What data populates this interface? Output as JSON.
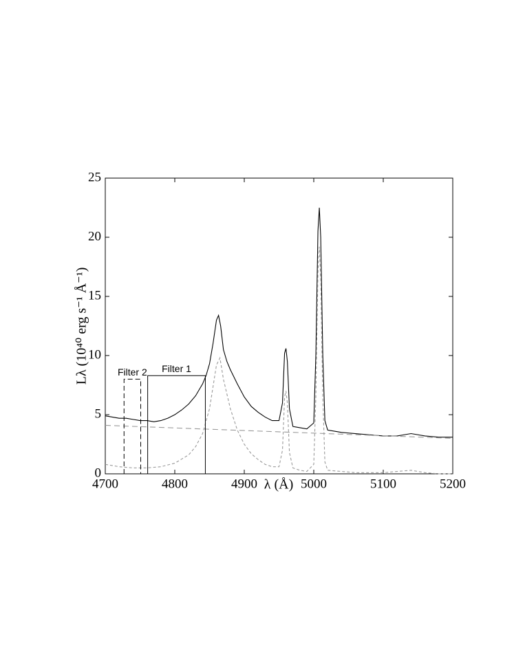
{
  "chart_data": {
    "type": "line",
    "x_label": "λ (Å)",
    "y_label": "Lλ (10⁴⁰ erg s⁻¹ Å⁻¹)",
    "xlim": [
      4700,
      5200
    ],
    "ylim": [
      0,
      25
    ],
    "xticks": [
      4700,
      4800,
      4900,
      5000,
      5100,
      5200
    ],
    "yticks": [
      0,
      5,
      10,
      15,
      20,
      25
    ],
    "series": [
      {
        "color": "#000000",
        "dash": "none",
        "x": [
          4700,
          4710,
          4720,
          4730,
          4740,
          4750,
          4760,
          4770,
          4780,
          4790,
          4800,
          4810,
          4820,
          4830,
          4840,
          4845,
          4850,
          4855,
          4860,
          4863,
          4866,
          4870,
          4875,
          4880,
          4890,
          4900,
          4910,
          4920,
          4930,
          4940,
          4950,
          4955,
          4958,
          4960,
          4962,
          4965,
          4970,
          4980,
          4990,
          5000,
          5003,
          5006,
          5008,
          5010,
          5013,
          5016,
          5020,
          5030,
          5040,
          5060,
          5080,
          5100,
          5120,
          5140,
          5160,
          5180,
          5200
        ],
        "values": [
          4.9,
          4.8,
          4.7,
          4.7,
          4.6,
          4.5,
          4.5,
          4.4,
          4.5,
          4.7,
          5.0,
          5.4,
          5.9,
          6.6,
          7.6,
          8.3,
          9.3,
          11.0,
          13.0,
          13.4,
          12.5,
          10.5,
          9.5,
          8.8,
          7.6,
          6.5,
          5.7,
          5.2,
          4.8,
          4.5,
          4.5,
          6.0,
          10.2,
          10.6,
          9.5,
          5.5,
          4.0,
          3.9,
          3.8,
          4.3,
          10.0,
          20.5,
          22.5,
          20.0,
          10.0,
          4.5,
          3.7,
          3.6,
          3.5,
          3.4,
          3.3,
          3.2,
          3.2,
          3.4,
          3.2,
          3.1,
          3.1
        ]
      },
      {
        "color": "#999999",
        "dash": "8,5",
        "x": [
          4700,
          5200
        ],
        "values": [
          4.1,
          3.0
        ]
      },
      {
        "color": "#999999",
        "dash": "4,3",
        "x": [
          4700,
          4720,
          4740,
          4760,
          4780,
          4800,
          4820,
          4830,
          4840,
          4850,
          4860,
          4865,
          4870,
          4880,
          4890,
          4900,
          4910,
          4920,
          4930,
          4940,
          4950,
          4955,
          4958,
          4960,
          4962,
          4965,
          4970,
          4980,
          4990,
          5000,
          5003,
          5006,
          5008,
          5010,
          5013,
          5016,
          5020,
          5040,
          5060,
          5080,
          5100,
          5120,
          5140,
          5160,
          5180,
          5200
        ],
        "values": [
          0.8,
          0.6,
          0.5,
          0.5,
          0.6,
          0.9,
          1.6,
          2.3,
          3.4,
          5.5,
          9.2,
          9.8,
          8.0,
          5.5,
          3.7,
          2.5,
          1.7,
          1.2,
          0.8,
          0.6,
          0.6,
          2.0,
          6.5,
          7.0,
          6.0,
          1.8,
          0.5,
          0.3,
          0.2,
          0.8,
          6.5,
          17.0,
          19.2,
          16.5,
          6.5,
          1.0,
          0.3,
          0.2,
          0.1,
          0.1,
          0.1,
          0.2,
          0.3,
          0.1,
          0.0,
          0.0
        ]
      }
    ],
    "annotations": [
      {
        "label": "Filter 1",
        "x": [
          4761,
          4844
        ],
        "height": 8.3,
        "dash": "none"
      },
      {
        "label": "Filter 2",
        "x": [
          4727,
          4751
        ],
        "height": 8.0,
        "dash": "7,4"
      }
    ]
  }
}
